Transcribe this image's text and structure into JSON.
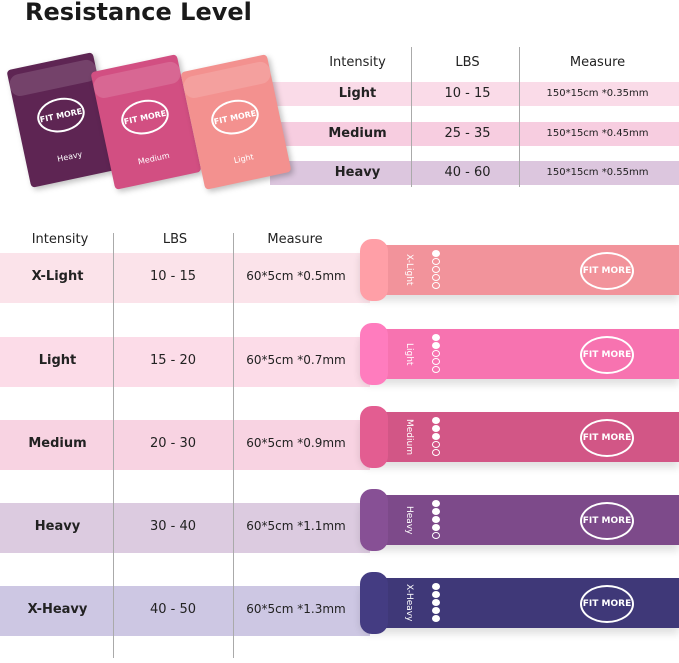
{
  "title": "Resistance Level",
  "brand": "FIT MORE",
  "top_table": {
    "headers": [
      "Intensity",
      "LBS",
      "Measure"
    ],
    "rows": [
      {
        "intensity": "Light",
        "lbs": "10 - 15",
        "measure": "150*15cm *0.35mm",
        "row_color": "#fadbe8"
      },
      {
        "intensity": "Medium",
        "lbs": "25 - 35",
        "measure": "150*15cm *0.45mm",
        "row_color": "#f7cde0"
      },
      {
        "intensity": "Heavy",
        "lbs": "40 - 60",
        "measure": "150*15cm *0.55mm",
        "row_color": "#dcc6de"
      }
    ],
    "sheets": [
      {
        "label": "Heavy",
        "color": "#5e2553"
      },
      {
        "label": "Medium",
        "color": "#d24f82"
      },
      {
        "label": "Light",
        "color": "#f3918f"
      }
    ]
  },
  "bottom_table": {
    "headers": [
      "Intensity",
      "LBS",
      "Measure"
    ],
    "rows": [
      {
        "intensity": "X-Light",
        "lbs": "10 - 15",
        "measure": "60*5cm *0.5mm",
        "row_color": "#fbe3ea",
        "band_color": "#f2939b",
        "band_label": "X-Light",
        "level": 1
      },
      {
        "intensity": "Light",
        "lbs": "15 - 20",
        "measure": "60*5cm *0.7mm",
        "row_color": "#fcdce8",
        "band_color": "#f773b0",
        "band_label": "Light",
        "level": 2
      },
      {
        "intensity": "Medium",
        "lbs": "20 - 30",
        "measure": "60*5cm *0.9mm",
        "row_color": "#f8d3e2",
        "band_color": "#d25686",
        "band_label": "Medium",
        "level": 3
      },
      {
        "intensity": "Heavy",
        "lbs": "30 - 40",
        "measure": "60*5cm *1.1mm",
        "row_color": "#dccbe0",
        "band_color": "#7d4a8a",
        "band_label": "Heavy",
        "level": 4
      },
      {
        "intensity": "X-Heavy",
        "lbs": "40 - 50",
        "measure": "60*5cm *1.3mm",
        "row_color": "#cdc7e3",
        "band_color": "#3f3878",
        "band_label": "X-Heavy",
        "level": 5
      }
    ]
  }
}
